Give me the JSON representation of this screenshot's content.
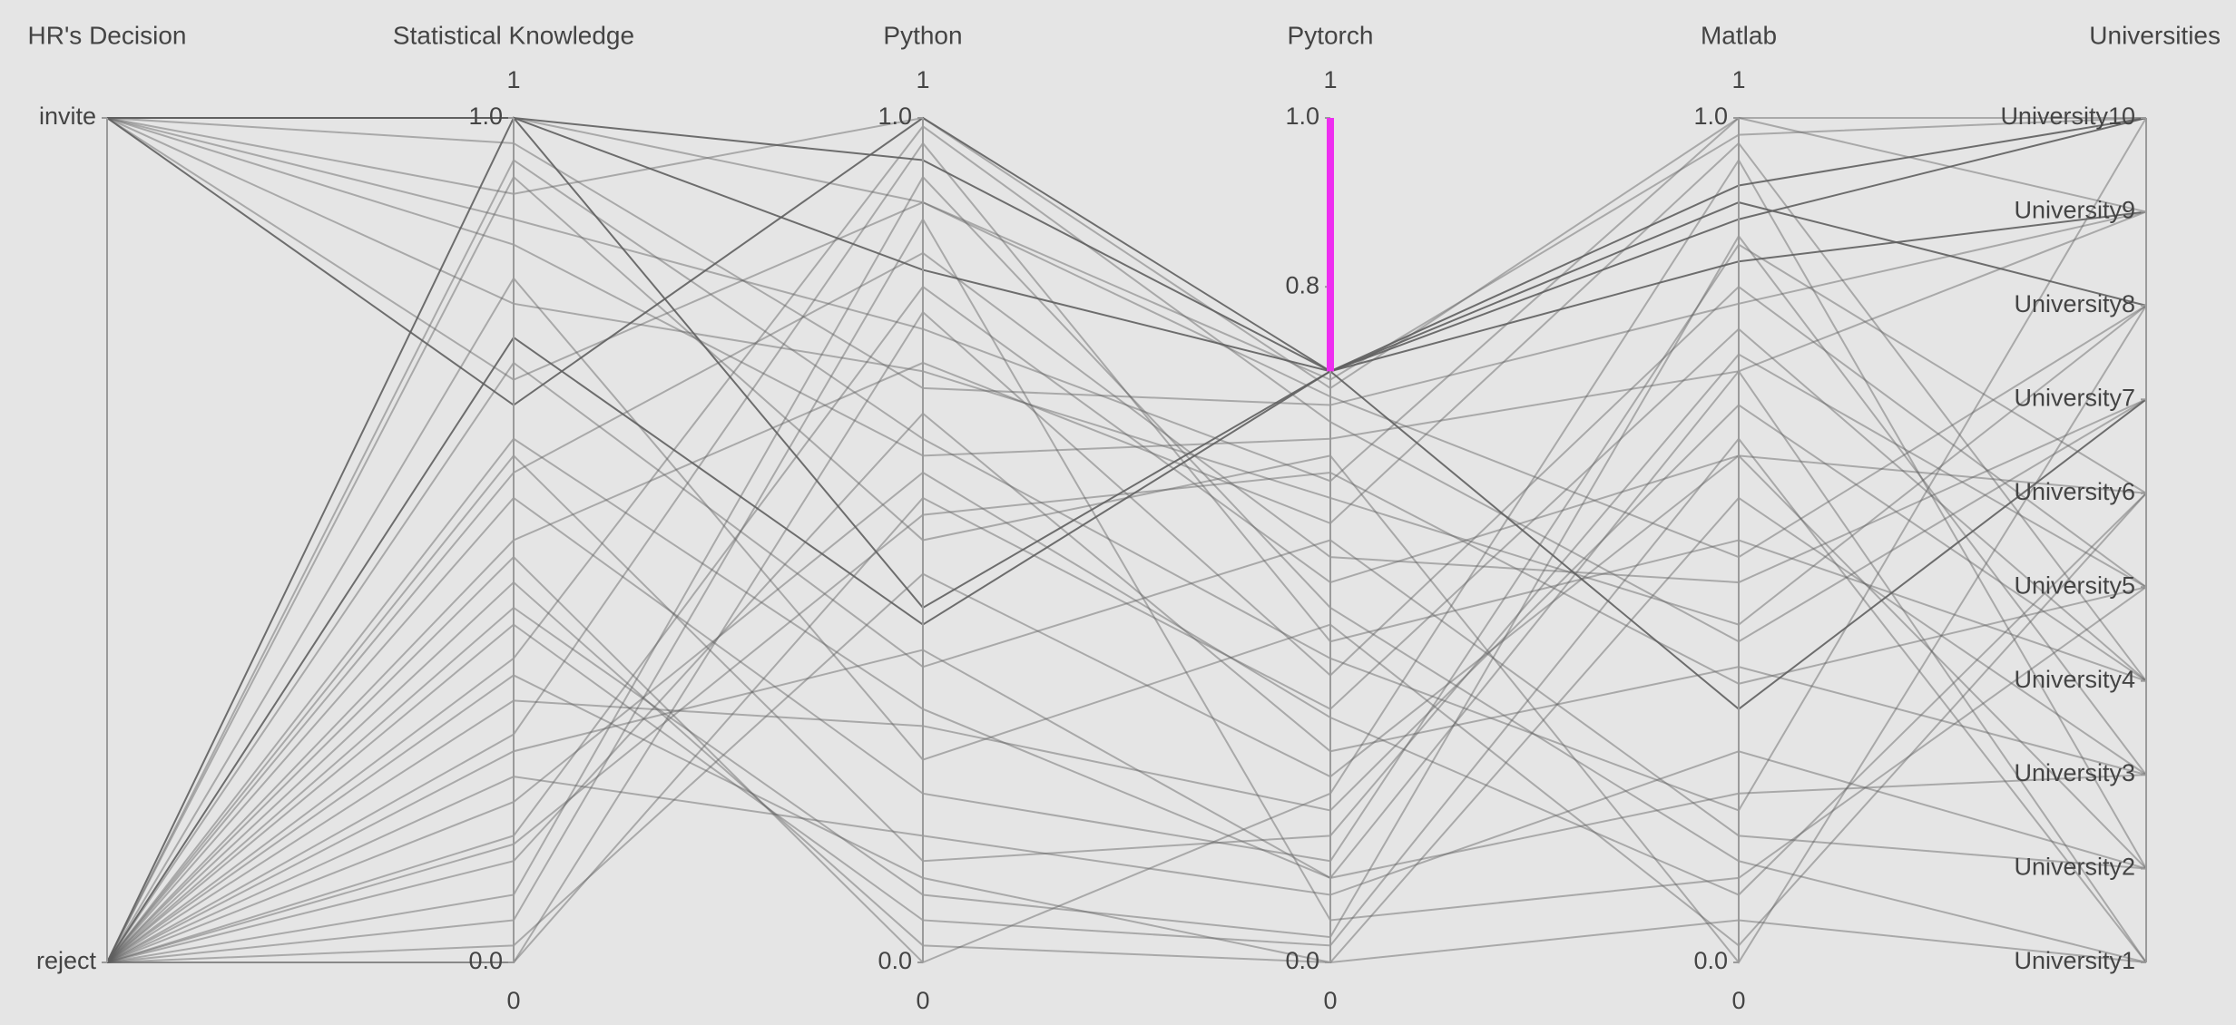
{
  "chart_data": {
    "type": "parcoords",
    "line_color": "#5f5f5f",
    "constraint_color": "#ee2ef0",
    "dimensions": [
      {
        "label": "HR's Decision",
        "ticks": [
          {
            "value": 0,
            "label": "reject"
          },
          {
            "value": 1,
            "label": "invite"
          }
        ],
        "values": [
          1,
          0,
          0,
          1,
          0,
          0,
          1,
          0,
          0,
          0,
          1,
          0,
          0,
          0,
          1,
          0,
          0,
          0,
          0,
          1,
          0,
          0,
          1,
          0,
          0,
          0,
          0,
          1,
          0,
          0,
          0,
          1,
          0,
          0,
          0,
          1,
          0,
          0,
          0,
          0
        ]
      },
      {
        "label": "Statistical Knowledge",
        "range": [
          0,
          1
        ],
        "ticks": [
          {
            "value": 0,
            "label": "0.0"
          },
          {
            "value": 1,
            "label": "1.0"
          }
        ],
        "values": [
          1,
          0.62,
          0.15,
          0.91,
          0.34,
          0,
          0.78,
          0.48,
          1,
          0.05,
          0.85,
          0.27,
          0.55,
          0.71,
          1,
          0.12,
          0.4,
          0.93,
          0,
          0.66,
          0.22,
          0.58,
          0.97,
          0.31,
          0.08,
          0.74,
          0.45,
          0.88,
          0.19,
          0.6,
          0.36,
          1,
          0.02,
          0.81,
          0.5,
          0.69,
          0.25,
          0.95,
          0.42,
          0.14
        ]
      },
      {
        "label": "Python",
        "range": [
          0,
          1
        ],
        "ticks": [
          {
            "value": 0,
            "label": "0.0"
          },
          {
            "value": 1,
            "label": "1.0"
          }
        ],
        "values": [
          0.95,
          0.3,
          0.8,
          1,
          0.1,
          0.55,
          0.7,
          0,
          0.42,
          0.88,
          0.6,
          0.97,
          0.2,
          0.35,
          0.9,
          0.65,
          0.05,
          0.5,
          0.77,
          1,
          0.15,
          0.84,
          0.68,
          0.28,
          0.93,
          0.4,
          0.02,
          0.75,
          0.58,
          0.12,
          0.99,
          0.82,
          0.46,
          0.24,
          0.71,
          0.9,
          0.37,
          0.62,
          0.08,
          0.53
        ]
      },
      {
        "label": "Pytorch",
        "range": [
          0,
          1
        ],
        "ticks": [
          {
            "value": 0,
            "label": "0.0"
          },
          {
            "value": 0.8,
            "label": "0.8"
          },
          {
            "value": 1,
            "label": "1.0"
          }
        ],
        "constraintrange": [
          0.7,
          1
        ],
        "values": [
          0.7,
          0.1,
          0.45,
          0.68,
          0,
          0.3,
          0.55,
          0.2,
          0.7,
          0.05,
          0.62,
          0.38,
          0.12,
          0.5,
          0.69,
          0.25,
          0.02,
          0.6,
          0.34,
          0.7,
          0.08,
          0.48,
          0.66,
          0.18,
          0.42,
          0.7,
          0,
          0.57,
          0.29,
          0.15,
          0.64,
          0.7,
          0.22,
          0.4,
          0.52,
          0.67,
          0.1,
          0.36,
          0.03,
          0.58
        ]
      },
      {
        "label": "Matlab",
        "range": [
          0,
          1
        ],
        "ticks": [
          {
            "value": 0,
            "label": "0.0"
          },
          {
            "value": 1,
            "label": "1.0"
          }
        ],
        "values": [
          0.88,
          0.2,
          0.6,
          1,
          0.05,
          0.75,
          0.4,
          0.95,
          0.3,
          0.1,
          0.7,
          0.5,
          0.85,
          0.15,
          0.98,
          0.35,
          0.62,
          0,
          0.8,
          0.92,
          0.25,
          0.45,
          0.78,
          0.66,
          0.12,
          0.9,
          0.55,
          1,
          0.08,
          0.72,
          0.38,
          0.83,
          0.6,
          0.02,
          0.97,
          0.48,
          0.7,
          0.18,
          0.86,
          0.33
        ]
      },
      {
        "label": "Universities",
        "ticks": [
          {
            "value": 1,
            "label": "University1"
          },
          {
            "value": 2,
            "label": "University2"
          },
          {
            "value": 3,
            "label": "University3"
          },
          {
            "value": 4,
            "label": "University4"
          },
          {
            "value": 5,
            "label": "University5"
          },
          {
            "value": 6,
            "label": "University6"
          },
          {
            "value": 7,
            "label": "University7"
          },
          {
            "value": 8,
            "label": "University8"
          },
          {
            "value": 9,
            "label": "University9"
          },
          {
            "value": 10,
            "label": "University10"
          }
        ],
        "values": [
          10,
          3,
          6,
          9,
          1,
          4,
          8,
          2,
          7,
          5,
          9,
          4,
          6,
          2,
          10,
          3,
          1,
          8,
          5,
          10,
          2,
          7,
          9,
          4,
          1,
          8,
          3,
          10,
          6,
          5,
          7,
          9,
          2,
          6,
          4,
          8,
          1,
          10,
          3,
          5
        ]
      }
    ]
  }
}
